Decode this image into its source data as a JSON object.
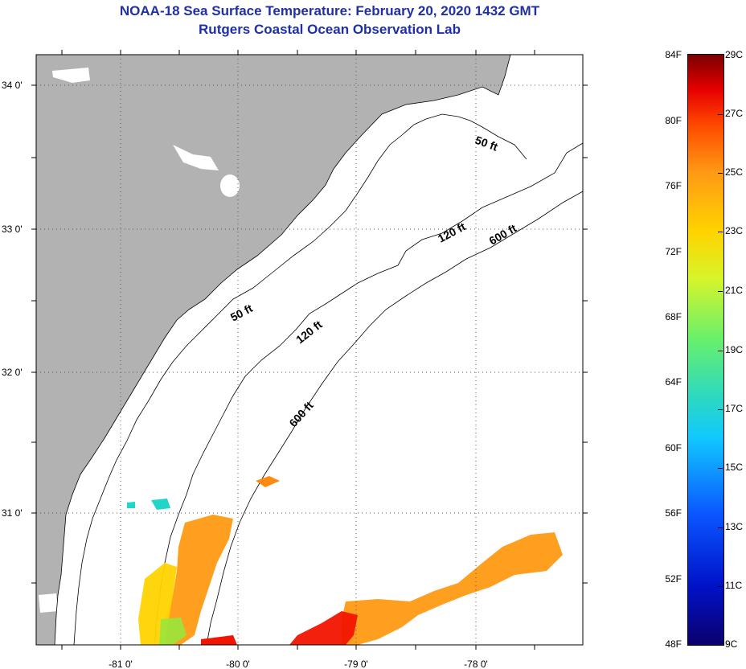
{
  "title": "NOAA-18 Sea Surface Temperature:  February 20, 2020 1432 GMT",
  "subtitle": "Rutgers Coastal Ocean Observation Lab",
  "map": {
    "lon_ticks": [
      "-81 0'",
      "-80 0'",
      "-79 0'",
      "-78 0'"
    ],
    "lat_ticks": [
      "34 0'",
      "33 0'",
      "32 0'",
      "31 0'"
    ],
    "contour_labels": [
      "50 ft",
      "120 ft",
      "600 ft",
      "50 ft",
      "120 ft",
      "600 ft"
    ],
    "colors": {
      "land": "#b2b2b2",
      "water": "#ffffff",
      "isobath": "#000000"
    }
  },
  "colorbar": {
    "fahrenheit": [
      "84F",
      "80F",
      "76F",
      "72F",
      "68F",
      "64F",
      "60F",
      "56F",
      "52F",
      "48F"
    ],
    "celsius": [
      "29C",
      "27C",
      "25C",
      "23C",
      "21C",
      "19C",
      "17C",
      "15C",
      "13C",
      "11C",
      "9C"
    ]
  }
}
